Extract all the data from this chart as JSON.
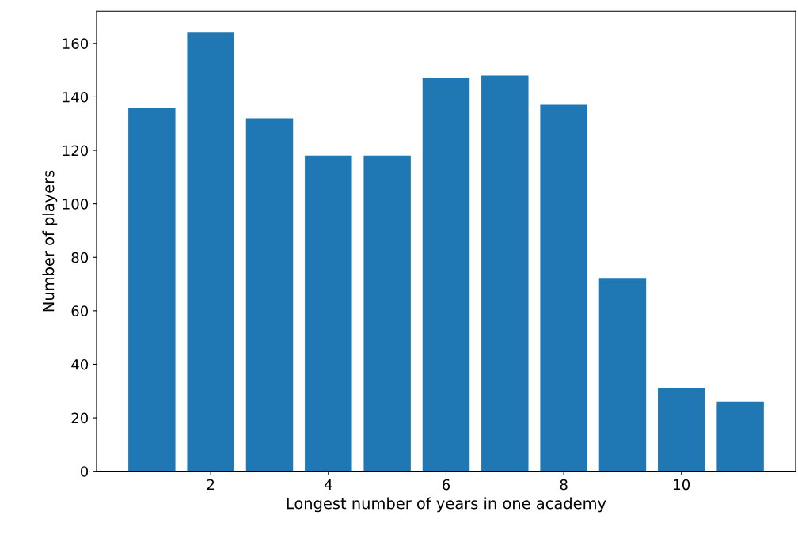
{
  "chart_data": {
    "type": "bar",
    "xlabel": "Longest number of years in one academy",
    "ylabel": "Number of players",
    "x": [
      1,
      2,
      3,
      4,
      5,
      6,
      7,
      8,
      9,
      10,
      11
    ],
    "values": [
      136,
      164,
      132,
      118,
      118,
      147,
      148,
      137,
      72,
      31,
      26
    ],
    "color": "#1f77b4",
    "xlim": [
      0.06,
      11.94
    ],
    "ylim": [
      0,
      172
    ],
    "xticks": [
      2,
      4,
      6,
      8,
      10
    ],
    "yticks": [
      0,
      20,
      40,
      60,
      80,
      100,
      120,
      140,
      160
    ],
    "grid": false
  }
}
